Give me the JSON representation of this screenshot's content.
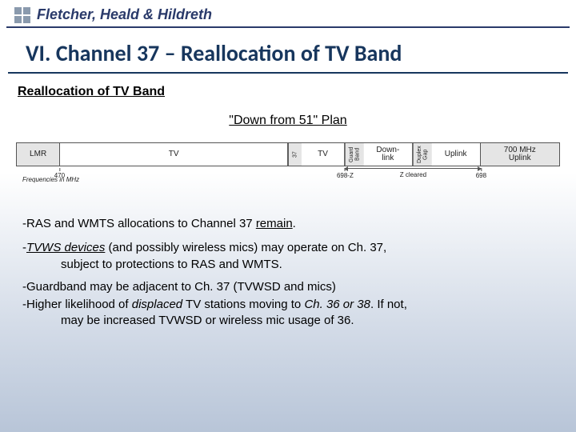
{
  "logo": {
    "brand": "Fletcher, Heald & Hildreth"
  },
  "title": "VI.   Channel 37 – Reallocation of TV Band",
  "subheading": "Reallocation of TV Band",
  "plan_label": "\"Down from 51\" Plan",
  "band": {
    "segments": [
      {
        "label": "LMR",
        "width_pct": 8,
        "gray": true,
        "vert": false
      },
      {
        "label": "TV",
        "width_pct": 42,
        "gray": false,
        "vert": false
      },
      {
        "label": "37",
        "width_pct": 2.5,
        "gray": true,
        "vert": true
      },
      {
        "label": "TV",
        "width_pct": 8,
        "gray": false,
        "vert": false
      },
      {
        "label": "Guard Band",
        "width_pct": 3.5,
        "gray": true,
        "vert": true
      },
      {
        "label": "Down-\nlink",
        "width_pct": 9,
        "gray": false,
        "vert": false
      },
      {
        "label": "Duplex Gap",
        "width_pct": 3.5,
        "gray": true,
        "vert": true
      },
      {
        "label": "Uplink",
        "width_pct": 9,
        "gray": false,
        "vert": false
      },
      {
        "label": "700 MHz\nUplink",
        "width_pct": 14.5,
        "gray": true,
        "vert": false
      }
    ],
    "ticks": [
      {
        "label": "470",
        "pos_pct": 8
      },
      {
        "label": "698-Z",
        "pos_pct": 60.5
      },
      {
        "label": "698",
        "pos_pct": 85.5
      }
    ],
    "freq_axis_label": "Frequencies in MHz",
    "z_cleared": {
      "label": "Z cleared",
      "left_pct": 60.5,
      "right_pct": 85.5
    }
  },
  "bullets": {
    "b1_pre": "-RAS and WMTS allocations to Channel 37 ",
    "b1_ul": "remain",
    "b1_post": ".",
    "b2_pre": "-",
    "b2_it": "TVWS devices",
    "b2_mid": " (and possibly wireless mics) may operate on Ch. 37,",
    "b2_line2": "subject to protections to RAS and WMTS.",
    "b3": "-Guardband may be adjacent to Ch. 37 (TVWSD and mics)",
    "b4_pre": "-Higher likelihood of ",
    "b4_it1": "displaced",
    "b4_mid": " TV stations moving to ",
    "b4_it2": "Ch. 36 or 38",
    "b4_post": ". If not,",
    "b4_line2": "may be increased TVWSD or wireless mic usage of 36."
  },
  "colors": {
    "title": "#17365d",
    "rule": "#17365d",
    "logo_text": "#2a3a6a",
    "logo_square": "#8a9aad",
    "seg_border": "#555555",
    "seg_gray": "#e5e5e5"
  }
}
